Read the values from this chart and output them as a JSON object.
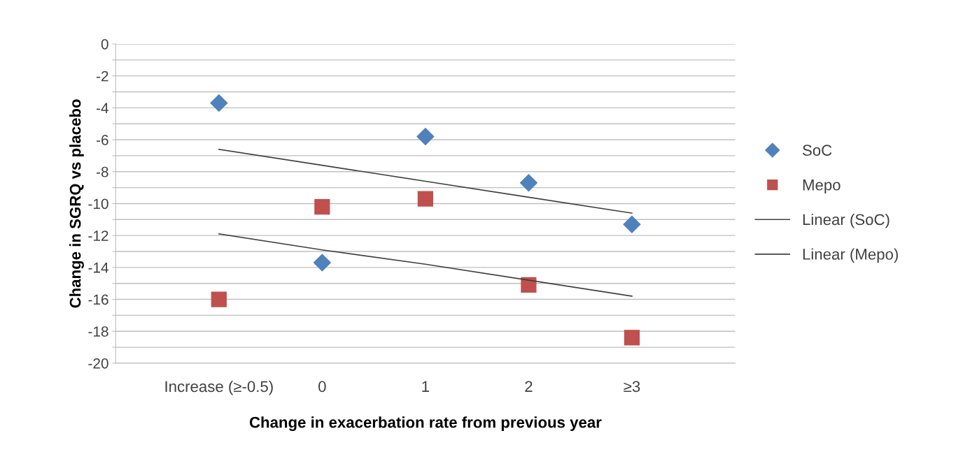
{
  "chart_data": {
    "type": "scatter",
    "xlabel": "Change in exacerbation rate from previous year",
    "ylabel": "Change in SGRQ vs placebo",
    "categories": [
      "Increase (≥-0.5)",
      "0",
      "1",
      "2",
      "≥3"
    ],
    "series": [
      {
        "name": "SoC",
        "marker": "diamond",
        "color": "#4f81bd",
        "values": [
          -3.7,
          -13.7,
          -5.8,
          -8.7,
          -11.3
        ]
      },
      {
        "name": "Mepo",
        "marker": "square",
        "color": "#c0504d",
        "values": [
          -16.0,
          -10.2,
          -9.7,
          -15.1,
          -18.4
        ]
      },
      {
        "name": "Linear (SoC)",
        "type": "line",
        "marker": "none",
        "color": "#404040",
        "values": [
          -6.6,
          -7.6,
          -8.6,
          -9.6,
          -10.6
        ]
      },
      {
        "name": "Linear (Mepo)",
        "type": "line",
        "marker": "none",
        "color": "#404040",
        "values": [
          -11.9,
          -12.9,
          -13.8,
          -14.8,
          -15.8
        ]
      }
    ],
    "ylim": [
      -20,
      0
    ],
    "yticks": [
      -20,
      {
        "value": -19,
        "label": null
      },
      -18,
      {
        "value": -17,
        "label": null
      },
      -16,
      {
        "value": -15,
        "label": null
      },
      -14,
      {
        "value": -13,
        "label": null
      },
      -12,
      {
        "value": -11,
        "label": null
      },
      -10,
      {
        "value": -9,
        "label": null
      },
      -8,
      {
        "value": -7,
        "label": null
      },
      -6,
      {
        "value": -5,
        "label": null
      },
      -4,
      {
        "value": -3,
        "label": null
      },
      -2,
      {
        "value": -1,
        "label": null
      },
      0
    ],
    "grid": "y",
    "legend": "right"
  }
}
